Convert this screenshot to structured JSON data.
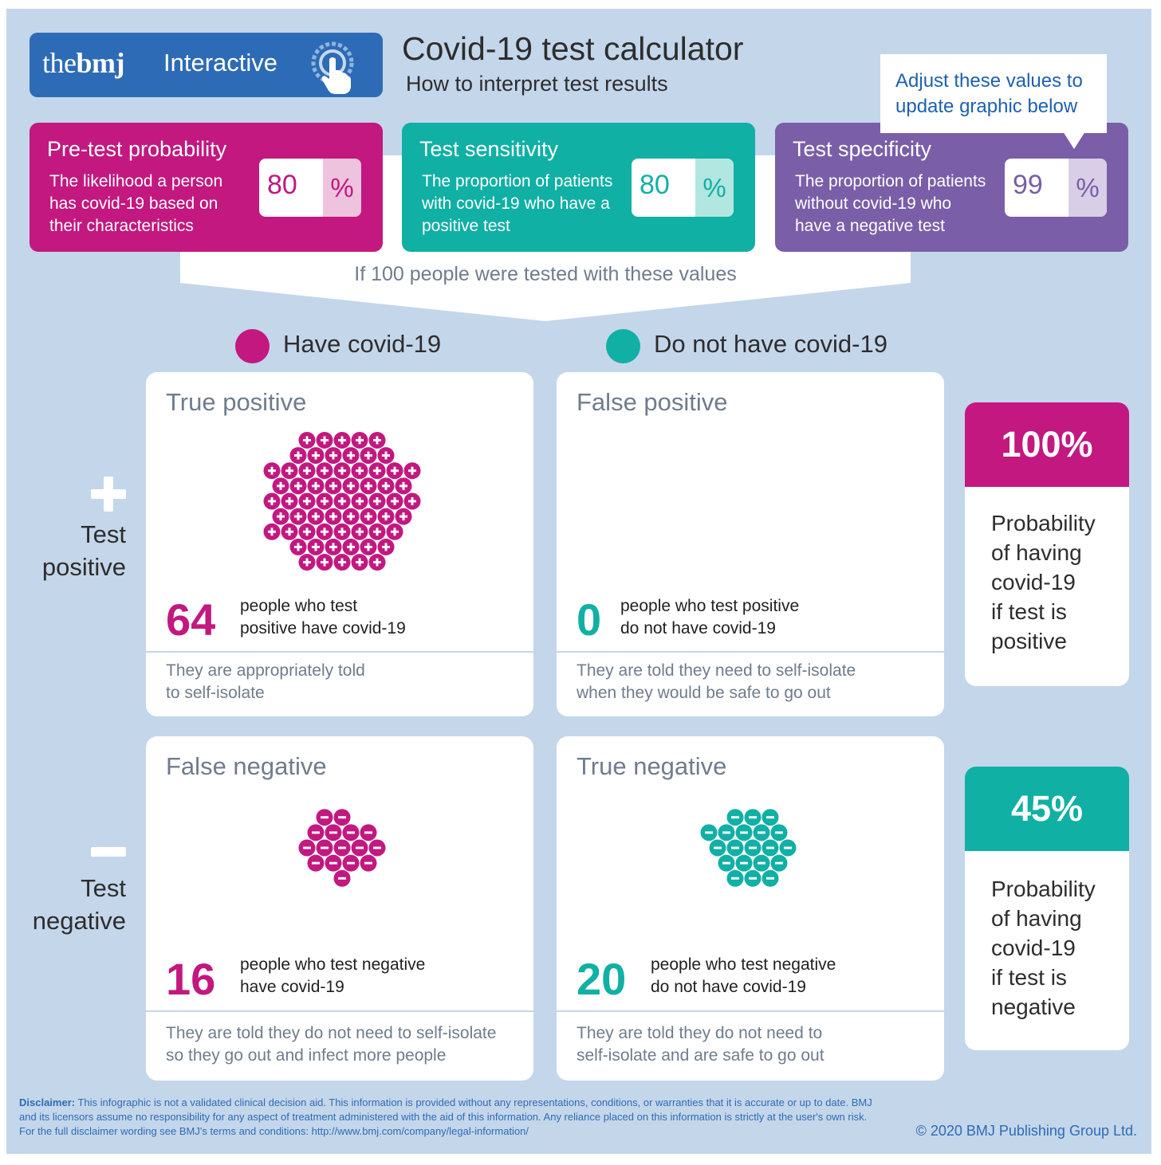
{
  "colors": {
    "background": "#c4d6ea",
    "magenta": "#c2187f",
    "teal": "#10b0a4",
    "purple": "#7a5ea8",
    "brand_blue": "#2e6bb6"
  },
  "header": {
    "brand_the": "the",
    "brand_bmj": "bmj",
    "brand_interactive": "Interactive",
    "title": "Covid-19 test calculator",
    "subtitle": "How to interpret test results",
    "tooltip": "Adjust these values to update graphic below"
  },
  "params": {
    "pretest": {
      "title": "Pre-test probability",
      "description": "The likelihood a person has covid-19 based on their characteristics",
      "value": "80",
      "unit": "%"
    },
    "sensitivity": {
      "title": "Test sensitivity",
      "description": "The proportion of patients with covid-19 who have a positive test",
      "value": "80",
      "unit": "%"
    },
    "specificity": {
      "title": "Test specificity",
      "description": "The proportion of patients without covid-19 who have a negative test",
      "value": "99",
      "unit": "%"
    }
  },
  "funnel_text": "If 100 people were tested with these values",
  "legend": {
    "have": "Have covid-19",
    "not_have": "Do not have covid-19"
  },
  "rows": {
    "positive_label_1": "Test",
    "positive_label_2": "positive",
    "negative_label_1": "Test",
    "negative_label_2": "negative"
  },
  "cells": {
    "true_positive": {
      "title": "True positive",
      "count": 64,
      "desc_1": "people who test",
      "desc_2": "positive have covid-19",
      "foot_1": "They are appropriately told",
      "foot_2": "to self-isolate"
    },
    "false_positive": {
      "title": "False positive",
      "count": 0,
      "desc_1": "people who test positive",
      "desc_2": "do not have covid-19",
      "foot_1": "They are told they need to self-isolate",
      "foot_2": "when they would be safe to go out"
    },
    "false_negative": {
      "title": "False negative",
      "count": 16,
      "desc_1": "people who test negative",
      "desc_2": "have covid-19",
      "foot_1": "They are told they do not need to self-isolate",
      "foot_2": "so they go out and infect more people"
    },
    "true_negative": {
      "title": "True negative",
      "count": 20,
      "desc_1": "people who test negative",
      "desc_2": "do not have covid-19",
      "foot_1": "They are told they do not need to",
      "foot_2": "self-isolate and are safe to go out"
    }
  },
  "probabilities": {
    "positive": {
      "value": "100%",
      "text": [
        "Probability",
        "of having",
        "covid-19",
        "if test is",
        "positive"
      ]
    },
    "negative": {
      "value": "45%",
      "text": [
        "Probability",
        "of having",
        "covid-19",
        "if test is",
        "negative"
      ]
    }
  },
  "footer": {
    "disclaimer_label": "Disclaimer:",
    "disclaimer_text": "This infographic is not a validated clinical decision aid. This information is provided without any representations, conditions, or warranties that it is accurate or up to date. BMJ and its licensors assume no responsibility for any aspect of treatment administered with the aid of this information. Any reliance placed on this information is strictly at the user's own risk. For the full disclaimer wording see BMJ's terms and conditions: http://www.bmj.com/company/legal-information/",
    "copyright": "© 2020 BMJ Publishing Group Ltd."
  }
}
